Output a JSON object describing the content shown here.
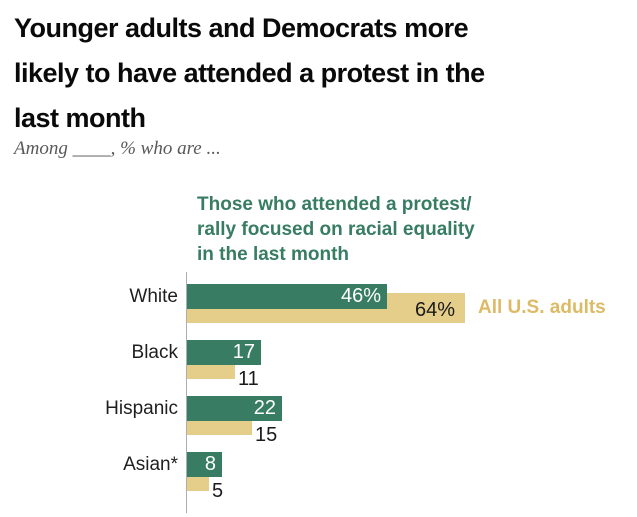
{
  "header": {
    "title": "Younger adults and Democrats more\nlikely to have attended a protest in the\nlast month",
    "subtitle": "Among ____, % who are ..."
  },
  "chart_data": {
    "type": "bar",
    "orientation": "horizontal",
    "title": "Younger adults and Democrats more likely to have attended a protest in the last month",
    "subtitle": "Among ____, % who are ...",
    "categories": [
      "White",
      "Black",
      "Hispanic",
      "Asian*"
    ],
    "series": [
      {
        "name": "Those who attended a protest/rally focused on racial equality in the last month",
        "color": "#377C63",
        "values": [
          46,
          17,
          22,
          8
        ],
        "value_labels": [
          "46%",
          "17",
          "22",
          "8"
        ],
        "value_label_color": "#ffffff"
      },
      {
        "name": "All U.S. adults",
        "color": "#E5CE8A",
        "values": [
          64,
          11,
          15,
          5
        ],
        "value_labels": [
          "64%",
          "11",
          "15",
          "5"
        ],
        "value_label_color": "#1a1a1a"
      }
    ],
    "legend": {
      "protest_label": "Those who attended a protest/\nrally focused on racial equality\nin the last month",
      "protest_label_color": "#377C63",
      "adults_label": "All U.S. adults",
      "adults_label_color": "#DDBB66",
      "position": "protest label above plot; adults label inline right of first gold bar"
    },
    "xlim": [
      0,
      100
    ],
    "grid": false,
    "axis_color": "#adadad"
  }
}
